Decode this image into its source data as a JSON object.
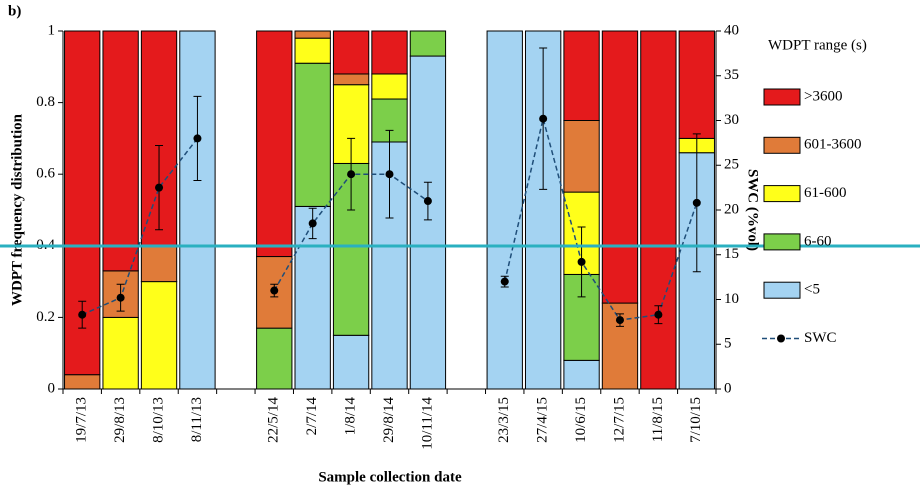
{
  "chart_data": {
    "type": "bar",
    "stacked": true,
    "panel_label": "b)",
    "x_label": "Sample collection date",
    "y_label": "WDPT frequency distribution",
    "y2_label": "SWC (%vol)",
    "legend_title": "WDPT range (s)",
    "categories": [
      "19/7/13",
      "29/8/13",
      "8/10/13",
      "8/11/13",
      null,
      "22/5/14",
      "2/7/14",
      "1/8/14",
      "29/8/14",
      "10/11/14",
      null,
      "23/3/15",
      "27/4/15",
      "10/6/15",
      "12/7/15",
      "11/8/15",
      "7/10/15"
    ],
    "ylim": [
      0,
      1
    ],
    "yticks": [
      0,
      0.2,
      0.4,
      0.6,
      0.8,
      1
    ],
    "y2lim": [
      0,
      40
    ],
    "y2ticks": [
      0,
      5,
      10,
      15,
      20,
      25,
      30,
      35,
      40
    ],
    "series": [
      {
        "name": ">3600",
        "color": "#e41a1c",
        "values": [
          0.96,
          0.67,
          0.6,
          0,
          null,
          0.63,
          0,
          0.12,
          0.12,
          0,
          null,
          0,
          0,
          0.25,
          0.76,
          1,
          0.3
        ]
      },
      {
        "name": "601-3600",
        "color": "#e07b39",
        "values": [
          0.04,
          0.13,
          0.1,
          0,
          null,
          0.2,
          0.02,
          0.03,
          0,
          0,
          null,
          0,
          0,
          0.2,
          0.24,
          0,
          0
        ]
      },
      {
        "name": "61-600",
        "color": "#ffff1a",
        "values": [
          0,
          0.2,
          0.3,
          0,
          null,
          0,
          0.07,
          0.22,
          0.07,
          0,
          null,
          0,
          0,
          0.23,
          0,
          0,
          0.04
        ]
      },
      {
        "name": "6-60",
        "color": "#7ccf4a",
        "values": [
          0,
          0,
          0,
          0,
          null,
          0.17,
          0.4,
          0.48,
          0.12,
          0.07,
          null,
          0,
          0,
          0.24,
          0,
          0,
          0
        ]
      },
      {
        "name": "<5",
        "color": "#a4d3f2",
        "values": [
          0,
          0,
          0,
          1,
          null,
          0,
          0.51,
          0.15,
          0.69,
          0.93,
          null,
          1,
          1,
          0.08,
          0,
          0,
          0.66
        ]
      },
      {
        "name": "SWC",
        "type": "line",
        "axis": "y2",
        "color": "#1f4e79",
        "values": [
          8.3,
          10.2,
          22.5,
          28,
          null,
          11,
          18.5,
          24,
          24,
          21,
          null,
          12,
          30.2,
          14.2,
          7.7,
          8.3,
          20.8
        ],
        "errors": [
          1.5,
          1.5,
          4.7,
          4.7,
          null,
          0.7,
          1.7,
          4,
          4.9,
          2.1,
          null,
          0.6,
          7.9,
          3.9,
          0.7,
          1,
          7.7
        ]
      }
    ]
  }
}
